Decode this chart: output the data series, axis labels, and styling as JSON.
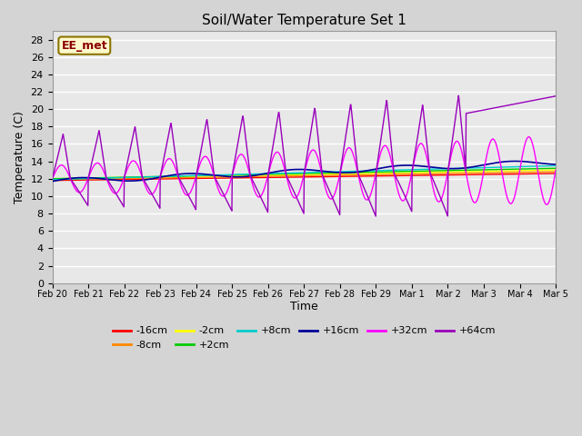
{
  "title": "Soil/Water Temperature Set 1",
  "xlabel": "Time",
  "ylabel": "Temperature (C)",
  "ylim": [
    0,
    29
  ],
  "yticks": [
    0,
    2,
    4,
    6,
    8,
    10,
    12,
    14,
    16,
    18,
    20,
    22,
    24,
    26,
    28
  ],
  "annotation_text": "EE_met",
  "annotation_color": "#8B0000",
  "annotation_bg": "#FFFACD",
  "annotation_edge": "#8B7500",
  "fig_bg": "#D4D4D4",
  "plot_bg": "#E8E8E8",
  "grid_color": "#FFFFFF",
  "legend_entries": [
    "-16cm",
    "-8cm",
    "-2cm",
    "+2cm",
    "+8cm",
    "+16cm",
    "+32cm",
    "+64cm"
  ],
  "legend_colors": [
    "#FF0000",
    "#FF8800",
    "#FFFF00",
    "#00CC00",
    "#00CCCC",
    "#000099",
    "#FF00FF",
    "#9900BB"
  ],
  "x_labels": [
    "Feb 20",
    "Feb 21",
    "Feb 22",
    "Feb 23",
    "Feb 24",
    "Feb 25",
    "Feb 26",
    "Feb 27",
    "Feb 28",
    "Feb 29",
    "Mar 1",
    "Mar 2",
    "Mar 3",
    "Mar 4",
    "Mar 5"
  ],
  "n_points": 1400
}
